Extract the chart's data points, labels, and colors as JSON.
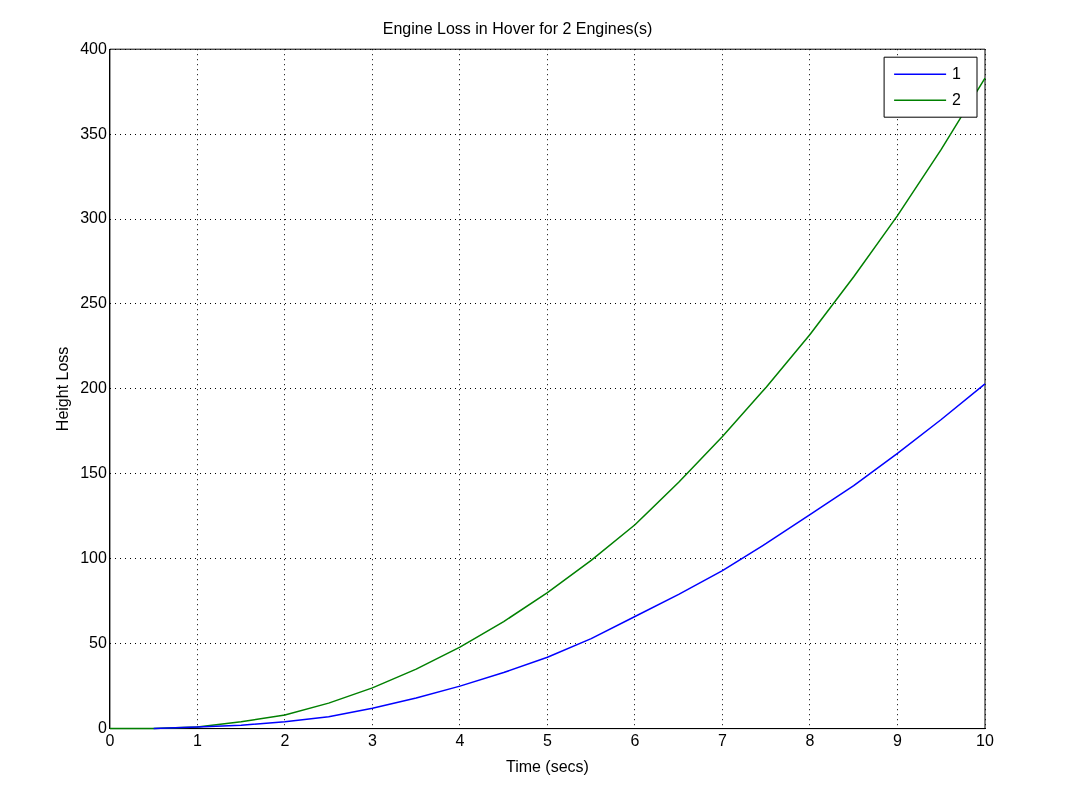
{
  "chart_data": {
    "type": "line",
    "title": "Engine Loss in Hover for 2 Engines(s)",
    "xlabel": "Time (secs)",
    "ylabel": "Height Loss",
    "x": [
      0,
      0.5,
      1,
      1.5,
      2,
      2.5,
      3,
      3.5,
      4,
      4.5,
      5,
      5.5,
      6,
      6.5,
      7,
      7.5,
      8,
      8.5,
      9,
      9.5,
      10
    ],
    "series": [
      {
        "name": "1",
        "color": "#0000ff",
        "values": [
          null,
          0,
          1,
          2,
          4,
          7,
          12,
          18,
          25,
          33,
          42,
          53,
          66,
          79,
          93,
          109,
          126,
          143,
          162,
          182,
          203
        ]
      },
      {
        "name": "2",
        "color": "#008000",
        "values": [
          0,
          0,
          1,
          4,
          8,
          15,
          24,
          35,
          48,
          63,
          80,
          99,
          120,
          145,
          172,
          201,
          232,
          266,
          302,
          341,
          383
        ]
      }
    ],
    "xlim": [
      0,
      10
    ],
    "xticks": [
      0,
      1,
      2,
      3,
      4,
      5,
      6,
      7,
      8,
      9,
      10
    ],
    "ylim": [
      0,
      400
    ],
    "yticks": [
      0,
      50,
      100,
      150,
      200,
      250,
      300,
      350,
      400
    ],
    "grid": true,
    "legend": "top right",
    "marker": "none",
    "line_style": "solid"
  }
}
